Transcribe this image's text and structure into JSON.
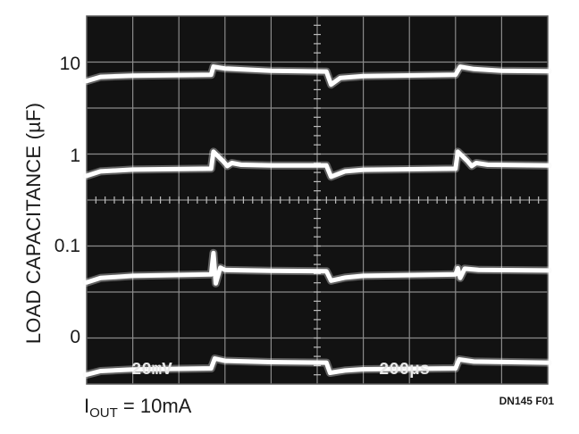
{
  "chart_data": {
    "type": "line",
    "title": "",
    "ylabel": "LOAD CAPACITANCE (µF)",
    "yticks": [
      "10",
      "1",
      "0.1",
      "0"
    ],
    "scope_labels": {
      "vertical_scale": "20mV",
      "time_scale": "200µs"
    },
    "grid": true,
    "divisions": {
      "horizontal": 10,
      "vertical": 8
    },
    "x_unit": "div",
    "series": [
      {
        "capacitance": "10",
        "points": [
          [
            0,
            -0.35
          ],
          [
            0.3,
            -0.12
          ],
          [
            1,
            -0.05
          ],
          [
            2.7,
            0
          ],
          [
            2.75,
            0.45
          ],
          [
            3,
            0.35
          ],
          [
            4,
            0.22
          ],
          [
            5.2,
            0.18
          ],
          [
            5.3,
            -0.55
          ],
          [
            5.5,
            -0.18
          ],
          [
            6,
            -0.08
          ],
          [
            8,
            0
          ],
          [
            8.1,
            0.45
          ],
          [
            8.4,
            0.32
          ],
          [
            9,
            0.22
          ],
          [
            10,
            0.2
          ]
        ]
      },
      {
        "capacitance": "1",
        "points": [
          [
            0,
            -0.4
          ],
          [
            0.3,
            -0.15
          ],
          [
            1,
            -0.05
          ],
          [
            2.7,
            0
          ],
          [
            2.75,
            0.95
          ],
          [
            2.95,
            0.45
          ],
          [
            3.05,
            0.15
          ],
          [
            3.15,
            0.32
          ],
          [
            3.35,
            0.22
          ],
          [
            4,
            0.18
          ],
          [
            5.2,
            0.18
          ],
          [
            5.3,
            -0.45
          ],
          [
            5.6,
            -0.15
          ],
          [
            6,
            -0.06
          ],
          [
            8,
            0
          ],
          [
            8.05,
            0.95
          ],
          [
            8.25,
            0.45
          ],
          [
            8.35,
            0.15
          ],
          [
            8.45,
            0.32
          ],
          [
            8.7,
            0.22
          ],
          [
            10,
            0.18
          ]
        ]
      },
      {
        "capacitance": "0.1",
        "points": [
          [
            0,
            -0.45
          ],
          [
            0.3,
            -0.2
          ],
          [
            1,
            -0.08
          ],
          [
            2.7,
            0
          ],
          [
            2.75,
            1.2
          ],
          [
            2.8,
            -0.5
          ],
          [
            2.9,
            0.38
          ],
          [
            3,
            0.25
          ],
          [
            4,
            0.2
          ],
          [
            5.2,
            0.18
          ],
          [
            5.3,
            -0.35
          ],
          [
            5.6,
            -0.18
          ],
          [
            6,
            -0.08
          ],
          [
            8,
            0
          ],
          [
            8.05,
            0.35
          ],
          [
            8.1,
            -0.2
          ],
          [
            8.2,
            0.32
          ],
          [
            8.5,
            0.25
          ],
          [
            10,
            0.22
          ]
        ]
      },
      {
        "capacitance": "0",
        "points": [
          [
            0,
            -0.35
          ],
          [
            0.3,
            -0.15
          ],
          [
            1,
            -0.06
          ],
          [
            2.7,
            0
          ],
          [
            2.78,
            0.55
          ],
          [
            3,
            0.42
          ],
          [
            4,
            0.35
          ],
          [
            5.2,
            0.32
          ],
          [
            5.28,
            -0.25
          ],
          [
            5.6,
            -0.12
          ],
          [
            6,
            -0.05
          ],
          [
            8,
            0
          ],
          [
            8.08,
            0.5
          ],
          [
            8.4,
            0.38
          ],
          [
            10,
            0.32
          ]
        ]
      }
    ]
  },
  "footer": {
    "iout_main": "I",
    "iout_sub": "OUT",
    "iout_value": " = 10mA",
    "figure_id": "DN145 F01"
  }
}
